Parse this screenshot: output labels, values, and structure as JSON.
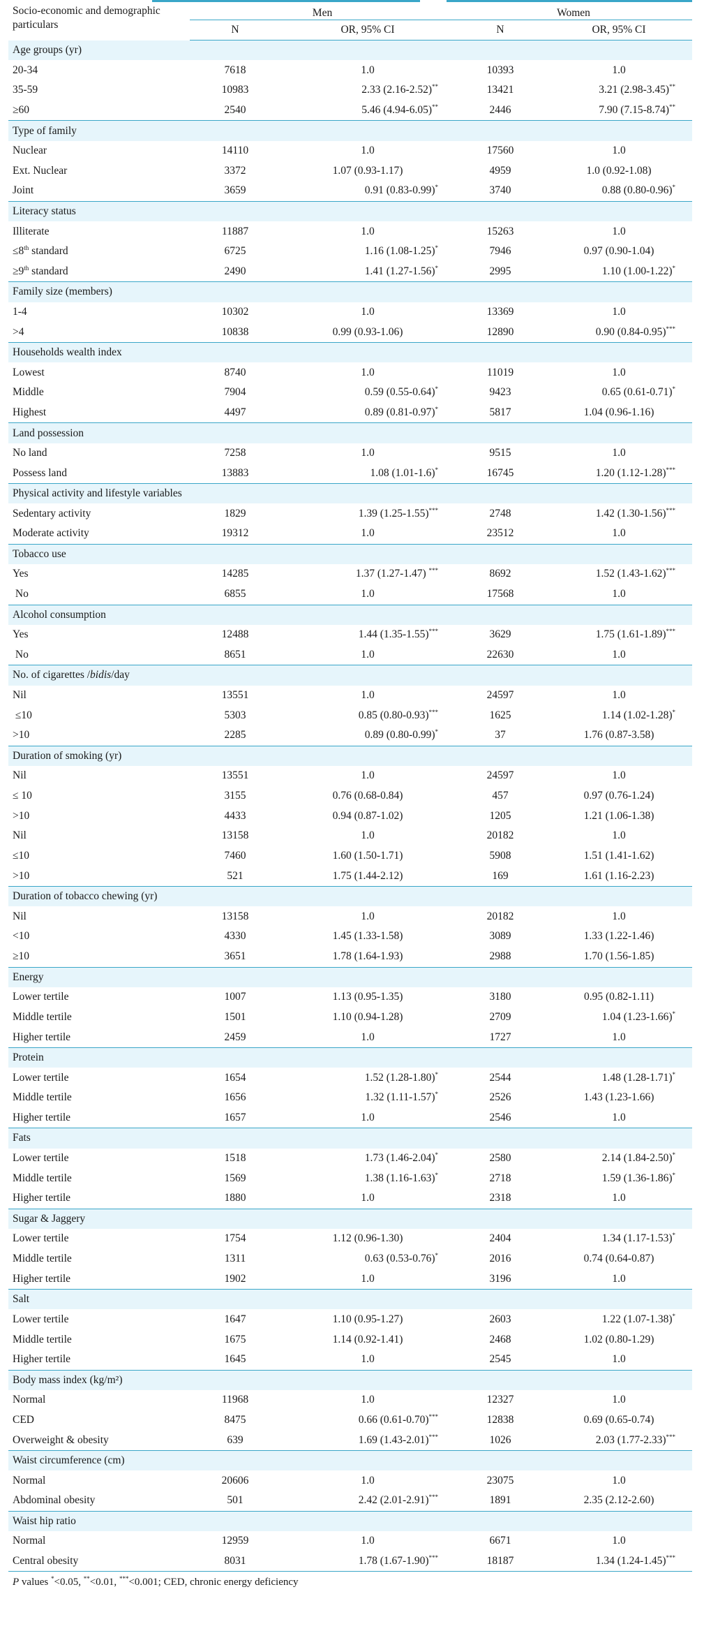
{
  "header": {
    "label": "Socio-economic and demographic particulars",
    "men": "Men",
    "women": "Women",
    "n": "N",
    "or": "OR, 95% CI"
  },
  "sections": [
    {
      "title": "Age groups (yr)",
      "rows": [
        {
          "label": "20-34",
          "men_n": "7618",
          "men_or": "1.0",
          "men_sig": "",
          "women_n": "10393",
          "women_or": "1.0",
          "women_sig": ""
        },
        {
          "label": "35-59",
          "men_n": "10983",
          "men_or": "2.33 (2.16-2.52)",
          "men_sig": "**",
          "women_n": "13421",
          "women_or": "3.21 (2.98-3.45)",
          "women_sig": "**"
        },
        {
          "label": "≥60",
          "men_n": "2540",
          "men_or": "5.46 (4.94-6.05)",
          "men_sig": "**",
          "women_n": "2446",
          "women_or": "7.90 (7.15-8.74)",
          "women_sig": "**"
        }
      ]
    },
    {
      "title": "Type of family",
      "rows": [
        {
          "label": "Nuclear",
          "men_n": "14110",
          "men_or": "1.0",
          "men_sig": "",
          "women_n": "17560",
          "women_or": "1.0",
          "women_sig": ""
        },
        {
          "label": "Ext. Nuclear",
          "men_n": "3372",
          "men_or": "1.07 (0.93-1.17)",
          "men_sig": "",
          "women_n": "4959",
          "women_or": "1.0 (0.92-1.08)",
          "women_sig": ""
        },
        {
          "label": "Joint",
          "men_n": "3659",
          "men_or": "0.91 (0.83-0.99)",
          "men_sig": "*",
          "women_n": "3740",
          "women_or": "0.88 (0.80-0.96)",
          "women_sig": "*"
        }
      ]
    },
    {
      "title": "Literacy status",
      "rows": [
        {
          "label": "Illiterate",
          "men_n": "11887",
          "men_or": "1.0",
          "men_sig": "",
          "women_n": "15263",
          "women_or": "1.0",
          "women_sig": ""
        },
        {
          "label": "≤8",
          "label_sup": "th",
          "label_after": " standard",
          "men_n": "6725",
          "men_or": "1.16 (1.08-1.25)",
          "men_sig": "*",
          "women_n": "7946",
          "women_or": "0.97 (0.90-1.04)",
          "women_sig": ""
        },
        {
          "label": "≥9",
          "label_sup": "th",
          "label_after": " standard",
          "men_n": "2490",
          "men_or": "1.41 (1.27-1.56)",
          "men_sig": "*",
          "women_n": "2995",
          "women_or": "1.10 (1.00-1.22)",
          "women_sig": "*"
        }
      ]
    },
    {
      "title": "Family size (members)",
      "rows": [
        {
          "label": "1-4",
          "men_n": "10302",
          "men_or": "1.0",
          "men_sig": "",
          "women_n": "13369",
          "women_or": "1.0",
          "women_sig": ""
        },
        {
          "label": ">4",
          "men_n": "10838",
          "men_or": "0.99 (0.93-1.06)",
          "men_sig": "",
          "women_n": "12890",
          "women_or": "0.90 (0.84-0.95)",
          "women_sig": "***"
        }
      ]
    },
    {
      "title": "Households wealth index",
      "rows": [
        {
          "label": "Lowest",
          "men_n": "8740",
          "men_or": "1.0",
          "men_sig": "",
          "women_n": "11019",
          "women_or": "1.0",
          "women_sig": ""
        },
        {
          "label": "Middle",
          "men_n": "7904",
          "men_or": "0.59 (0.55-0.64)",
          "men_sig": "*",
          "women_n": "9423",
          "women_or": "0.65 (0.61-0.71)",
          "women_sig": "*"
        },
        {
          "label": "Highest",
          "men_n": "4497",
          "men_or": "0.89 (0.81-0.97)",
          "men_sig": "*",
          "women_n": "5817",
          "women_or": "1.04 (0.96-1.16)",
          "women_sig": ""
        }
      ]
    },
    {
      "title": "Land possession",
      "rows": [
        {
          "label": "No land",
          "men_n": "7258",
          "men_or": "1.0",
          "men_sig": "",
          "women_n": "9515",
          "women_or": "1.0",
          "women_sig": ""
        },
        {
          "label": "Possess land",
          "men_n": "13883",
          "men_or": "1.08 (1.01-1.6)",
          "men_sig": "*",
          "women_n": "16745",
          "women_or": "1.20 (1.12-1.28)",
          "women_sig": "***"
        }
      ]
    },
    {
      "title": "Physical activity and lifestyle variables",
      "rows": [
        {
          "label": "Sedentary activity",
          "men_n": "1829",
          "men_or": "1.39 (1.25-1.55)",
          "men_sig": "***",
          "women_n": "2748",
          "women_or": "1.42 (1.30-1.56)",
          "women_sig": "***"
        },
        {
          "label": "Moderate activity",
          "men_n": "19312",
          "men_or": "1.0",
          "men_sig": "",
          "women_n": "23512",
          "women_or": "1.0",
          "women_sig": ""
        }
      ]
    },
    {
      "title": "Tobacco use",
      "rows": [
        {
          "label": "Yes",
          "men_n": "14285",
          "men_or": "1.37 (1.27-1.47) ",
          "men_sig": "***",
          "women_n": "8692",
          "women_or": "1.52 (1.43-1.62)",
          "women_sig": "***"
        },
        {
          "label": " No",
          "men_n": "6855",
          "men_or": "1.0",
          "men_sig": "",
          "women_n": "17568",
          "women_or": "1.0",
          "women_sig": ""
        }
      ]
    },
    {
      "title": "Alcohol consumption",
      "rows": [
        {
          "label": "Yes",
          "men_n": "12488",
          "men_or": "1.44 (1.35-1.55)",
          "men_sig": "***",
          "women_n": "3629",
          "women_or": "1.75 (1.61-1.89)",
          "women_sig": "***"
        },
        {
          "label": " No",
          "men_n": "8651",
          "men_or": "1.0",
          "men_sig": "",
          "women_n": "22630",
          "women_or": "1.0",
          "women_sig": ""
        }
      ]
    },
    {
      "title": "No. of cigarettes /",
      "title_italic": "bidis",
      "title_after": "/day",
      "rows": [
        {
          "label": "Nil",
          "men_n": "13551",
          "men_or": "1.0",
          "men_sig": "",
          "women_n": "24597",
          "women_or": "1.0",
          "women_sig": ""
        },
        {
          "label": " ≤10",
          "men_n": "5303",
          "men_or": "0.85 (0.80-0.93)",
          "men_sig": "***",
          "women_n": "1625",
          "women_or": "1.14 (1.02-1.28)",
          "women_sig": "*"
        },
        {
          "label": ">10",
          "men_n": "2285",
          "men_or": "0.89 (0.80-0.99)",
          "men_sig": "*",
          "women_n": "37",
          "women_or": "1.76 (0.87-3.58)",
          "women_sig": ""
        }
      ]
    },
    {
      "title": "Duration of smoking (yr)",
      "rows": [
        {
          "label": "Nil",
          "men_n": "13551",
          "men_or": "1.0",
          "men_sig": "",
          "women_n": "24597",
          "women_or": "1.0",
          "women_sig": ""
        },
        {
          "label": "≤ 10",
          "men_n": "3155",
          "men_or": "0.76 (0.68-0.84)",
          "men_sig": "",
          "women_n": "457",
          "women_or": "0.97 (0.76-1.24)",
          "women_sig": ""
        },
        {
          "label": ">10",
          "men_n": "4433",
          "men_or": "0.94 (0.87-1.02)",
          "men_sig": "",
          "women_n": "1205",
          "women_or": "1.21 (1.06-1.38)",
          "women_sig": ""
        },
        {
          "label": "Nil",
          "men_n": "13158",
          "men_or": "1.0",
          "men_sig": "",
          "women_n": "20182",
          "women_or": "1.0",
          "women_sig": ""
        },
        {
          "label": "≤10",
          "men_n": "7460",
          "men_or": "1.60 (1.50-1.71)",
          "men_sig": "",
          "women_n": "5908",
          "women_or": "1.51 (1.41-1.62)",
          "women_sig": ""
        },
        {
          "label": ">10",
          "men_n": "521",
          "men_or": "1.75 (1.44-2.12)",
          "men_sig": "",
          "women_n": "169",
          "women_or": "1.61 (1.16-2.23)",
          "women_sig": ""
        }
      ]
    },
    {
      "title": "Duration of tobacco chewing (yr)",
      "rows": [
        {
          "label": "Nil",
          "men_n": "13158",
          "men_or": "1.0",
          "men_sig": "",
          "women_n": "20182",
          "women_or": "1.0",
          "women_sig": ""
        },
        {
          "label": "<10",
          "men_n": "4330",
          "men_or": "1.45 (1.33-1.58)",
          "men_sig": "",
          "women_n": "3089",
          "women_or": "1.33 (1.22-1.46)",
          "women_sig": ""
        },
        {
          "label": "≥10",
          "men_n": "3651",
          "men_or": "1.78 (1.64-1.93)",
          "men_sig": "",
          "women_n": "2988",
          "women_or": "1.70 (1.56-1.85)",
          "women_sig": ""
        }
      ]
    },
    {
      "title": "Energy",
      "rows": [
        {
          "label": "Lower tertile",
          "men_n": "1007",
          "men_or": "1.13 (0.95-1.35)",
          "men_sig": "",
          "women_n": "3180",
          "women_or": "0.95 (0.82-1.11)",
          "women_sig": ""
        },
        {
          "label": "Middle tertile",
          "men_n": "1501",
          "men_or": "1.10 (0.94-1.28)",
          "men_sig": "",
          "women_n": "2709",
          "women_or": "1.04 (1.23-1.66)",
          "women_sig": "*"
        },
        {
          "label": "Higher tertile",
          "men_n": "2459",
          "men_or": "1.0",
          "men_sig": "",
          "women_n": "1727",
          "women_or": "1.0",
          "women_sig": ""
        }
      ]
    },
    {
      "title": "Protein",
      "rows": [
        {
          "label": "Lower tertile",
          "men_n": "1654",
          "men_or": "1.52 (1.28-1.80)",
          "men_sig": "*",
          "women_n": "2544",
          "women_or": "1.48 (1.28-1.71)",
          "women_sig": "*"
        },
        {
          "label": "Middle tertile",
          "men_n": "1656",
          "men_or": "1.32 (1.11-1.57)",
          "men_sig": "*",
          "women_n": "2526",
          "women_or": "1.43 (1.23-1.66)",
          "women_sig": ""
        },
        {
          "label": "Higher tertile",
          "men_n": "1657",
          "men_or": "1.0",
          "men_sig": "",
          "women_n": "2546",
          "women_or": "1.0",
          "women_sig": ""
        }
      ]
    },
    {
      "title": "Fats",
      "rows": [
        {
          "label": "Lower tertile",
          "men_n": "1518",
          "men_or": "1.73 (1.46-2.04)",
          "men_sig": "*",
          "women_n": "2580",
          "women_or": "2.14 (1.84-2.50)",
          "women_sig": "*"
        },
        {
          "label": "Middle tertile",
          "men_n": "1569",
          "men_or": "1.38 (1.16-1.63)",
          "men_sig": "*",
          "women_n": "2718",
          "women_or": "1.59 (1.36-1.86)",
          "women_sig": "*"
        },
        {
          "label": "Higher tertile",
          "men_n": "1880",
          "men_or": "1.0",
          "men_sig": "",
          "women_n": "2318",
          "women_or": "1.0",
          "women_sig": ""
        }
      ]
    },
    {
      "title": "Sugar & Jaggery",
      "rows": [
        {
          "label": "Lower tertile",
          "men_n": "1754",
          "men_or": "1.12 (0.96-1.30)",
          "men_sig": "",
          "women_n": "2404",
          "women_or": "1.34 (1.17-1.53)",
          "women_sig": "*"
        },
        {
          "label": "Middle tertile",
          "men_n": "1311",
          "men_or": "0.63 (0.53-0.76)",
          "men_sig": "*",
          "women_n": "2016",
          "women_or": "0.74 (0.64-0.87)",
          "women_sig": ""
        },
        {
          "label": "Higher tertile",
          "men_n": "1902",
          "men_or": "1.0",
          "men_sig": "",
          "women_n": "3196",
          "women_or": "1.0",
          "women_sig": ""
        }
      ]
    },
    {
      "title": "Salt",
      "rows": [
        {
          "label": "Lower tertile",
          "men_n": "1647",
          "men_or": "1.10 (0.95-1.27)",
          "men_sig": "",
          "women_n": "2603",
          "women_or": "1.22 (1.07-1.38)",
          "women_sig": "*"
        },
        {
          "label": "Middle tertile",
          "men_n": "1675",
          "men_or": "1.14 (0.92-1.41)",
          "men_sig": "",
          "women_n": "2468",
          "women_or": "1.02 (0.80-1.29)",
          "women_sig": ""
        },
        {
          "label": "Higher tertile",
          "men_n": "1645",
          "men_or": "1.0",
          "men_sig": "",
          "women_n": "2545",
          "women_or": "1.0",
          "women_sig": ""
        }
      ]
    },
    {
      "title": "Body mass index (kg/m²)",
      "rows": [
        {
          "label": "Normal",
          "men_n": "11968",
          "men_or": "1.0",
          "men_sig": "",
          "women_n": "12327",
          "women_or": "1.0",
          "women_sig": ""
        },
        {
          "label": "CED",
          "men_n": "8475",
          "men_or": "0.66 (0.61-0.70)",
          "men_sig": "***",
          "women_n": "12838",
          "women_or": "0.69 (0.65-0.74)",
          "women_sig": ""
        },
        {
          "label": "Overweight & obesity",
          "men_n": "639",
          "men_or": "1.69 (1.43-2.01)",
          "men_sig": "***",
          "women_n": "1026",
          "women_or": "2.03 (1.77-2.33)",
          "women_sig": "***"
        }
      ]
    },
    {
      "title": "Waist circumference (cm)",
      "rows": [
        {
          "label": "Normal",
          "men_n": "20606",
          "men_or": "1.0",
          "men_sig": "",
          "women_n": "23075",
          "women_or": "1.0",
          "women_sig": ""
        },
        {
          "label": "Abdominal obesity",
          "men_n": "501",
          "men_or": "2.42 (2.01-2.91)",
          "men_sig": "***",
          "women_n": "1891",
          "women_or": "2.35 (2.12-2.60)",
          "women_sig": ""
        }
      ]
    },
    {
      "title": "Waist hip ratio",
      "rows": [
        {
          "label": "Normal",
          "men_n": "12959",
          "men_or": "1.0",
          "men_sig": "",
          "women_n": "6671",
          "women_or": "1.0",
          "women_sig": ""
        },
        {
          "label": "Central obesity",
          "men_n": "8031",
          "men_or": "1.78 (1.67-1.90)",
          "men_sig": "***",
          "women_n": "18187",
          "women_or": "1.34 (1.24-1.45)",
          "women_sig": "***"
        }
      ]
    }
  ],
  "footnote": {
    "p": "P",
    "text1": " values ",
    "s1": "*",
    "text2": "<0.05, ",
    "s2": "**",
    "text3": "<0.01, ",
    "s3": "***",
    "text4": "<0.001; CED, chronic energy deficiency"
  }
}
